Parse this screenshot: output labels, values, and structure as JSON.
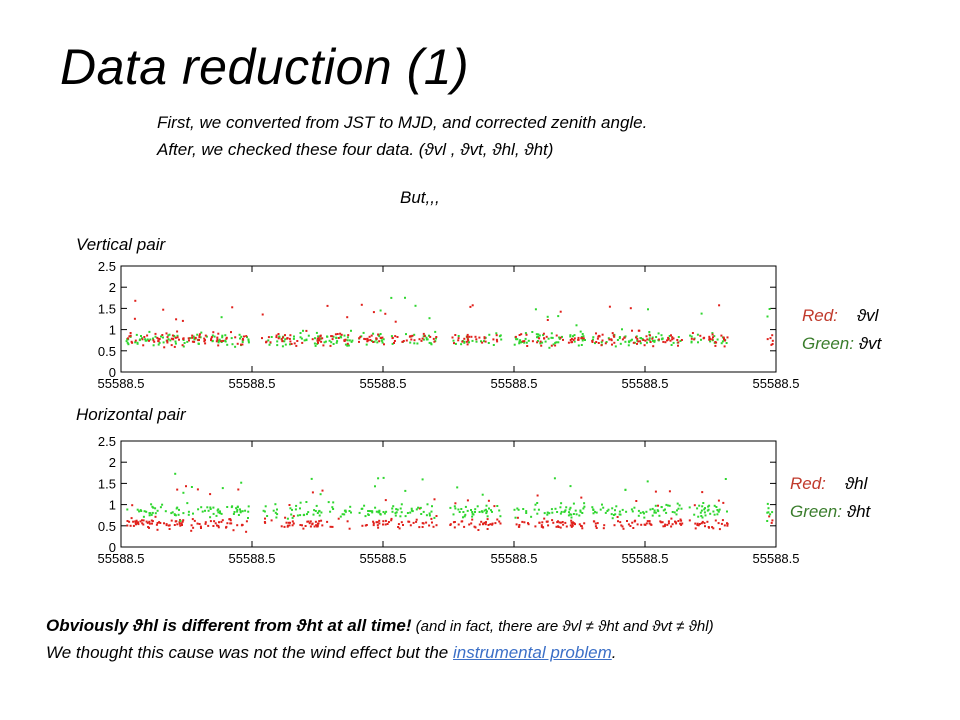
{
  "slide": {
    "title": "Data reduction (1)",
    "intro_line1": "First, we converted from JST to MJD, and corrected zenith angle.",
    "intro_line2": "After, we checked these four data. (ϑvl , ϑvt, ϑhl, ϑht)",
    "but": "But,,,",
    "footer": {
      "line1_strong": "Obviously ϑhl is different  from ϑht at all time!",
      "line1_aside": " (and in fact, there are ϑvl ≠ ϑht and ϑvt ≠ ϑhl)",
      "line2_text": "We thought this cause was not the wind effect but the ",
      "line2_link": "instrumental  problem",
      "line2_end": "."
    },
    "colors": {
      "red": "#e0201b",
      "green": "#2fd62f",
      "link": "#3b6fc7"
    }
  },
  "chart_data": [
    {
      "type": "scatter",
      "panel_label": "Vertical pair",
      "x_tick_labels": [
        "55588.5",
        "55588.5",
        "55588.5",
        "55588.5",
        "55588.5",
        "55588.5"
      ],
      "y_ticks": [
        "2.5",
        "2",
        "1.5",
        "1",
        "0.5",
        "0"
      ],
      "ylim": [
        0,
        2.5
      ],
      "legend": [
        {
          "color_name": "Red:",
          "symbol": "ϑvl",
          "color": "#e0201b"
        },
        {
          "color_name": "Green:",
          "symbol": "ϑvt",
          "color": "#2fd62f"
        }
      ],
      "series": [
        {
          "name": "ϑvl",
          "color": "#e0201b",
          "mean": 0.78,
          "spread": 0.2
        },
        {
          "name": "ϑvt",
          "color": "#2fd62f",
          "mean": 0.78,
          "spread": 0.2
        }
      ]
    },
    {
      "type": "scatter",
      "panel_label": "Horizontal pair",
      "x_tick_labels": [
        "55588.5",
        "55588.5",
        "55588.5",
        "55588.5",
        "55588.5",
        "55588.5"
      ],
      "y_ticks": [
        "2.5",
        "2",
        "1.5",
        "1",
        "0.5",
        "0"
      ],
      "ylim": [
        0,
        2.5
      ],
      "legend": [
        {
          "color_name": "Red:",
          "symbol": "ϑhl",
          "color": "#e0201b"
        },
        {
          "color_name": "Green:",
          "symbol": "ϑht",
          "color": "#2fd62f"
        }
      ],
      "series": [
        {
          "name": "ϑhl",
          "color": "#e0201b",
          "mean": 0.55,
          "spread": 0.15
        },
        {
          "name": "ϑht",
          "color": "#2fd62f",
          "mean": 0.85,
          "spread": 0.2
        }
      ]
    }
  ]
}
